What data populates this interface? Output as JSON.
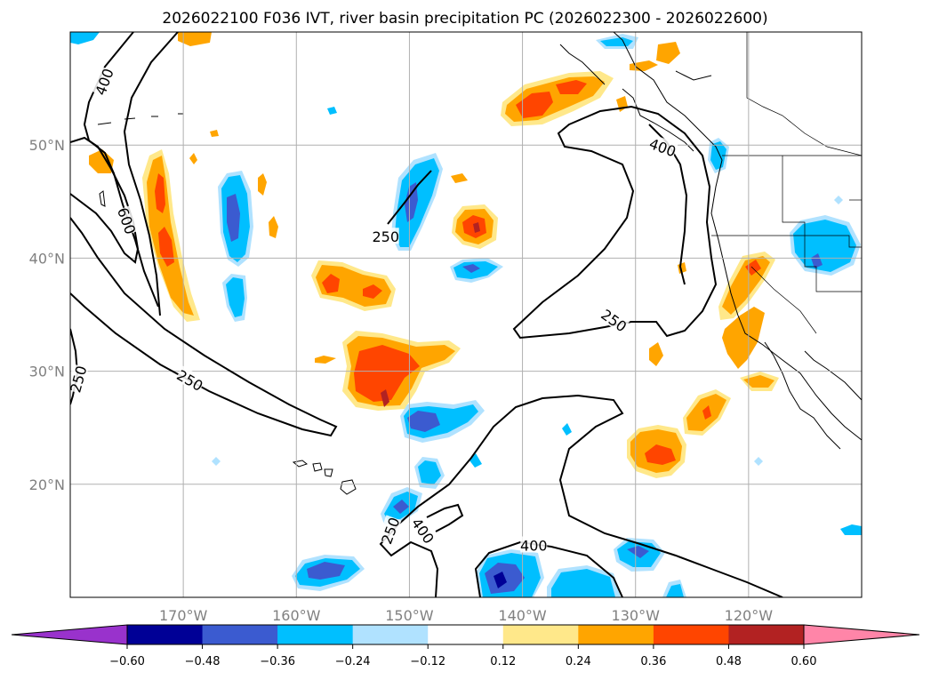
{
  "title": "2026022100 F036 IVT, river basin precipitation PC (2026022300 - 2026022600)",
  "map": {
    "lon_range": [
      -180,
      -110
    ],
    "lat_range": [
      10,
      60
    ],
    "lon_ticks": [
      {
        "value": -170,
        "label": "170°W"
      },
      {
        "value": -160,
        "label": "160°W"
      },
      {
        "value": -150,
        "label": "150°W"
      },
      {
        "value": -140,
        "label": "140°W"
      },
      {
        "value": -130,
        "label": "130°W"
      },
      {
        "value": -120,
        "label": "120°W"
      }
    ],
    "lat_ticks": [
      {
        "value": 20,
        "label": "20°N"
      },
      {
        "value": 30,
        "label": "30°N"
      },
      {
        "value": 40,
        "label": "40°N"
      },
      {
        "value": 50,
        "label": "50°N"
      }
    ],
    "grid": true,
    "contour_labels": [
      {
        "text": "400",
        "lon": -177,
        "lat": 55.6,
        "rot": -70
      },
      {
        "text": "600",
        "lon": -175,
        "lat": 43.3,
        "rot": 70
      },
      {
        "text": "250",
        "lon": -179.3,
        "lat": 29.3,
        "rot": -75
      },
      {
        "text": "250",
        "lon": -169.4,
        "lat": 29.2,
        "rot": 30
      },
      {
        "text": "250",
        "lon": -152.1,
        "lat": 41.9,
        "rot": 0
      },
      {
        "text": "250",
        "lon": -131.9,
        "lat": 34.5,
        "rot": 35
      },
      {
        "text": "250",
        "lon": -151.7,
        "lat": 15.9,
        "rot": -70
      },
      {
        "text": "400",
        "lon": -148.8,
        "lat": 15.9,
        "rot": 55
      },
      {
        "text": "400",
        "lon": -139,
        "lat": 14.6,
        "rot": 0
      },
      {
        "text": "400",
        "lon": -127.6,
        "lat": 49.8,
        "rot": 20
      }
    ]
  },
  "colorbar": {
    "levels": [
      -0.6,
      -0.48,
      -0.36,
      -0.24,
      -0.12,
      0.12,
      0.24,
      0.36,
      0.48,
      0.6
    ],
    "tick_labels": [
      "−0.60",
      "−0.48",
      "−0.36",
      "−0.24",
      "−0.12",
      "0.12",
      "0.24",
      "0.36",
      "0.48",
      "0.60"
    ],
    "colors": [
      "#9932cc",
      "#000096",
      "#3b5bd0",
      "#00bfff",
      "#b0e2ff",
      "#ffffff",
      "#ffe88a",
      "#ffa500",
      "#ff4500",
      "#b22222",
      "#ff85a8"
    ],
    "extend": "both"
  },
  "colors": {
    "strong_neg": "#000096",
    "mid_neg": "#3b5bd0",
    "neg": "#00bfff",
    "weak_neg": "#b0e2ff",
    "weak_pos": "#ffe88a",
    "pos": "#ffa500",
    "mid_pos": "#ff4500",
    "strong_pos": "#b22222"
  }
}
